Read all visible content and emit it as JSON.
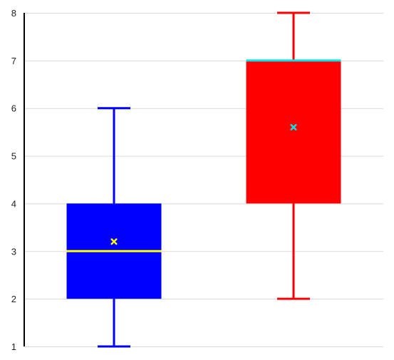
{
  "chart_data": {
    "type": "box",
    "title": "",
    "xlabel": "",
    "ylabel": "",
    "ylim": [
      1,
      8
    ],
    "y_ticks": [
      1,
      2,
      3,
      4,
      5,
      6,
      7,
      8
    ],
    "grid": true,
    "legend": "none",
    "series": [
      {
        "min": 1,
        "q1": 2,
        "median": 3,
        "q3": 4,
        "max": 6,
        "mean": 3.2,
        "box_color": "#0000ff",
        "median_color": "#ffff00",
        "mean_marker_color": "#ffff00"
      },
      {
        "min": 2,
        "q1": 4,
        "median": 7,
        "q3": 7,
        "max": 8,
        "mean": 5.6,
        "box_color": "#ff0000",
        "median_color": "#00e5e5",
        "mean_marker_color": "#00e5e5"
      }
    ]
  },
  "colors": {
    "axis": "#000000",
    "grid": "#d9d9d9",
    "tick_text": "#222222"
  }
}
